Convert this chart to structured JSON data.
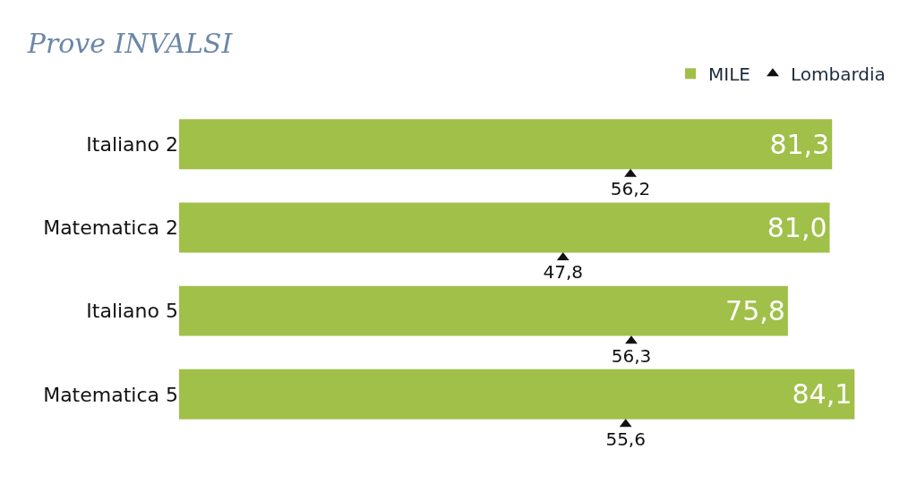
{
  "chart_data": {
    "type": "bar",
    "orientation": "horizontal",
    "title": "Prove INVALSI",
    "categories": [
      "Italiano 2",
      "Matematica 2",
      "Italiano 5",
      "Matematica 5"
    ],
    "series": [
      {
        "name": "MILE",
        "color": "#a0c04a",
        "values": [
          81.3,
          81.0,
          75.8,
          84.1
        ],
        "value_labels": [
          "81,3",
          "81,0",
          "75,8",
          "84,1"
        ]
      },
      {
        "name": "Lombardia",
        "type": "scatter",
        "color": "#111111",
        "marker": "triangle",
        "values": [
          56.2,
          47.8,
          56.3,
          55.6
        ],
        "value_labels": [
          "56,2",
          "47,8",
          "56,3",
          "55,6"
        ]
      }
    ],
    "tick_labels": "y",
    "grid": false,
    "legend": "top right"
  }
}
